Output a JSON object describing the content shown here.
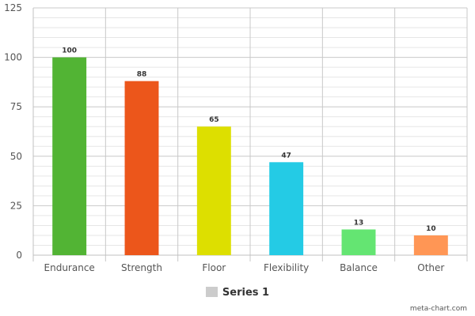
{
  "chart_data": {
    "type": "bar",
    "categories": [
      "Endurance",
      "Strength",
      "Floor",
      "Flexibility",
      "Balance",
      "Other"
    ],
    "series": [
      {
        "name": "Series 1",
        "values": [
          100,
          88,
          65,
          47,
          13,
          10
        ]
      }
    ],
    "colors": [
      "#52b434",
      "#ec561b",
      "#dddf00",
      "#24cbe5",
      "#64e572",
      "#ff9655"
    ],
    "ylim": [
      0,
      125
    ],
    "yticks": [
      0,
      25,
      50,
      75,
      100,
      125
    ],
    "grid": true,
    "legend": "bottom-center",
    "xlabel": "",
    "ylabel": ""
  },
  "legend": {
    "label": "Series 1",
    "swatch_color": "#cccccc"
  },
  "credit": "meta-chart.com"
}
